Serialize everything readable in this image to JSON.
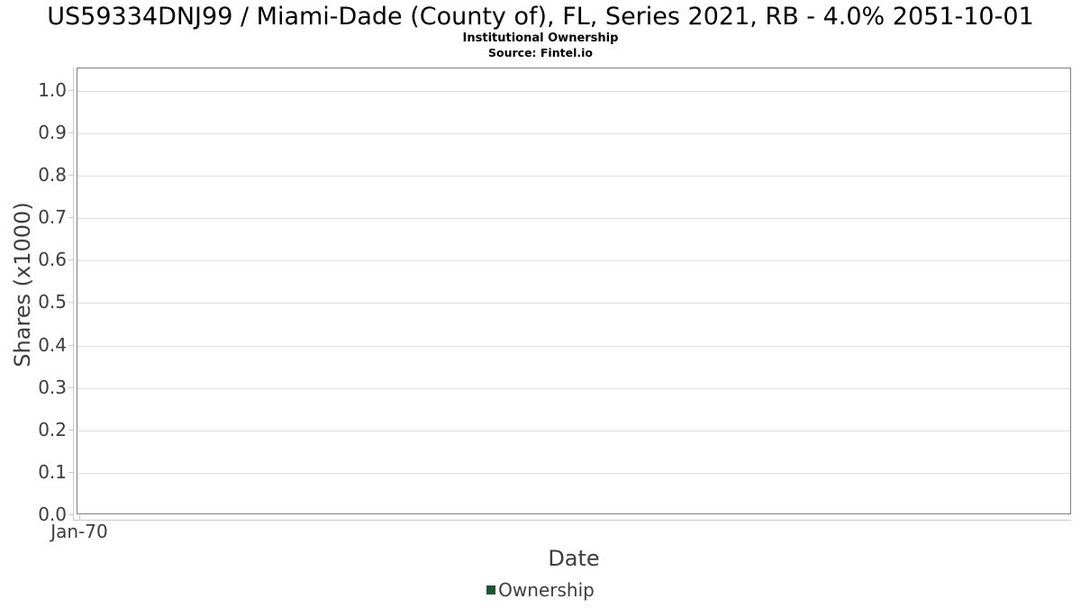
{
  "chart_data": {
    "type": "line",
    "title": "US59334DNJ99 / Miami-Dade (County of), FL, Series 2021, RB - 4.0% 2051-10-01",
    "subtitle": "Institutional Ownership",
    "source": "Source: Fintel.io",
    "xlabel": "Date",
    "ylabel": "Shares (x1000)",
    "x_tick_labels": [
      "Jan-70"
    ],
    "y_tick_labels": [
      "0.0",
      "0.1",
      "0.2",
      "0.3",
      "0.4",
      "0.5",
      "0.6",
      "0.7",
      "0.8",
      "0.9",
      "1.0"
    ],
    "ylim": [
      0,
      1.053
    ],
    "grid": true,
    "legend_position": "bottom-center",
    "series": [
      {
        "name": "Ownership",
        "color": "#1e5631",
        "points": []
      }
    ],
    "colors": {
      "plot_border": "#7f7f7f",
      "gridline": "#e0e0e0",
      "axis_line": "#cbcbcb",
      "text": "#3d3d3d",
      "title_text": "#000000",
      "background": "#ffffff"
    }
  }
}
